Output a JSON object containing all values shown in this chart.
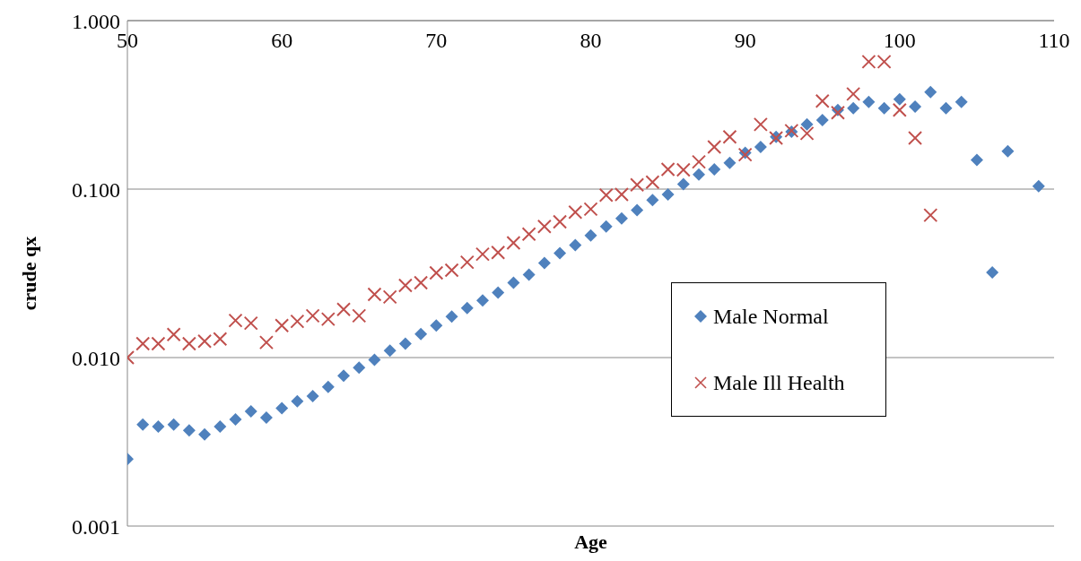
{
  "chart_data": {
    "type": "scatter",
    "xlabel": "Age",
    "ylabel": "crude qx",
    "log": "y",
    "grid": "y",
    "legend": "right",
    "xlim": [
      50,
      110
    ],
    "xticks": [
      50,
      60,
      70,
      80,
      90,
      100,
      110
    ],
    "ylim": [
      0.001,
      1
    ],
    "yticks": [
      {
        "value": 0.001,
        "label": "0.001"
      },
      {
        "value": 0.01,
        "label": "0.010"
      },
      {
        "value": 0.1,
        "label": "0.100"
      },
      {
        "value": 1,
        "label": "1.000"
      }
    ],
    "series": [
      {
        "name": "Male Normal",
        "color": "#4f81bd",
        "marker": "diamond",
        "x": [
          50,
          51,
          52,
          53,
          54,
          55,
          56,
          57,
          58,
          59,
          60,
          61,
          62,
          63,
          64,
          65,
          66,
          67,
          68,
          69,
          70,
          71,
          72,
          73,
          74,
          75,
          76,
          77,
          78,
          79,
          80,
          81,
          82,
          83,
          84,
          85,
          86,
          87,
          88,
          89,
          90,
          91,
          92,
          93,
          94,
          95,
          96,
          97,
          98,
          99,
          100,
          101,
          102,
          103,
          104,
          105,
          106,
          107,
          109
        ],
        "values": [
          0.0025,
          0.004,
          0.0039,
          0.004,
          0.0037,
          0.0035,
          0.0039,
          0.0043,
          0.0048,
          0.0044,
          0.005,
          0.0055,
          0.0059,
          0.0067,
          0.0078,
          0.0087,
          0.0097,
          0.011,
          0.0121,
          0.0138,
          0.0155,
          0.0175,
          0.0197,
          0.0218,
          0.0243,
          0.0278,
          0.031,
          0.0364,
          0.0416,
          0.0465,
          0.053,
          0.06,
          0.067,
          0.075,
          0.086,
          0.093,
          0.107,
          0.122,
          0.131,
          0.143,
          0.164,
          0.178,
          0.204,
          0.219,
          0.242,
          0.257,
          0.295,
          0.302,
          0.329,
          0.302,
          0.341,
          0.309,
          0.376,
          0.302,
          0.329,
          0.149,
          0.032,
          0.168,
          0.104
        ]
      },
      {
        "name": "Male Ill Health",
        "color": "#c0504d",
        "marker": "cross",
        "x": [
          50,
          51,
          52,
          53,
          54,
          55,
          56,
          57,
          58,
          59,
          60,
          61,
          62,
          63,
          64,
          65,
          66,
          67,
          68,
          69,
          70,
          71,
          72,
          73,
          74,
          75,
          76,
          77,
          78,
          79,
          80,
          81,
          82,
          83,
          84,
          85,
          86,
          87,
          88,
          89,
          90,
          91,
          92,
          93,
          94,
          95,
          96,
          97,
          98,
          99,
          100,
          101,
          102
        ],
        "values": [
          0.01,
          0.0121,
          0.0121,
          0.0137,
          0.0121,
          0.0125,
          0.0129,
          0.0166,
          0.016,
          0.0123,
          0.0155,
          0.0164,
          0.0177,
          0.0169,
          0.0193,
          0.0177,
          0.0237,
          0.0229,
          0.0268,
          0.0278,
          0.0318,
          0.033,
          0.0368,
          0.0411,
          0.042,
          0.048,
          0.054,
          0.06,
          0.064,
          0.073,
          0.076,
          0.092,
          0.093,
          0.106,
          0.11,
          0.131,
          0.13,
          0.145,
          0.178,
          0.204,
          0.16,
          0.242,
          0.201,
          0.222,
          0.214,
          0.333,
          0.284,
          0.367,
          0.57,
          0.57,
          0.295,
          0.201,
          0.07
        ]
      }
    ]
  }
}
